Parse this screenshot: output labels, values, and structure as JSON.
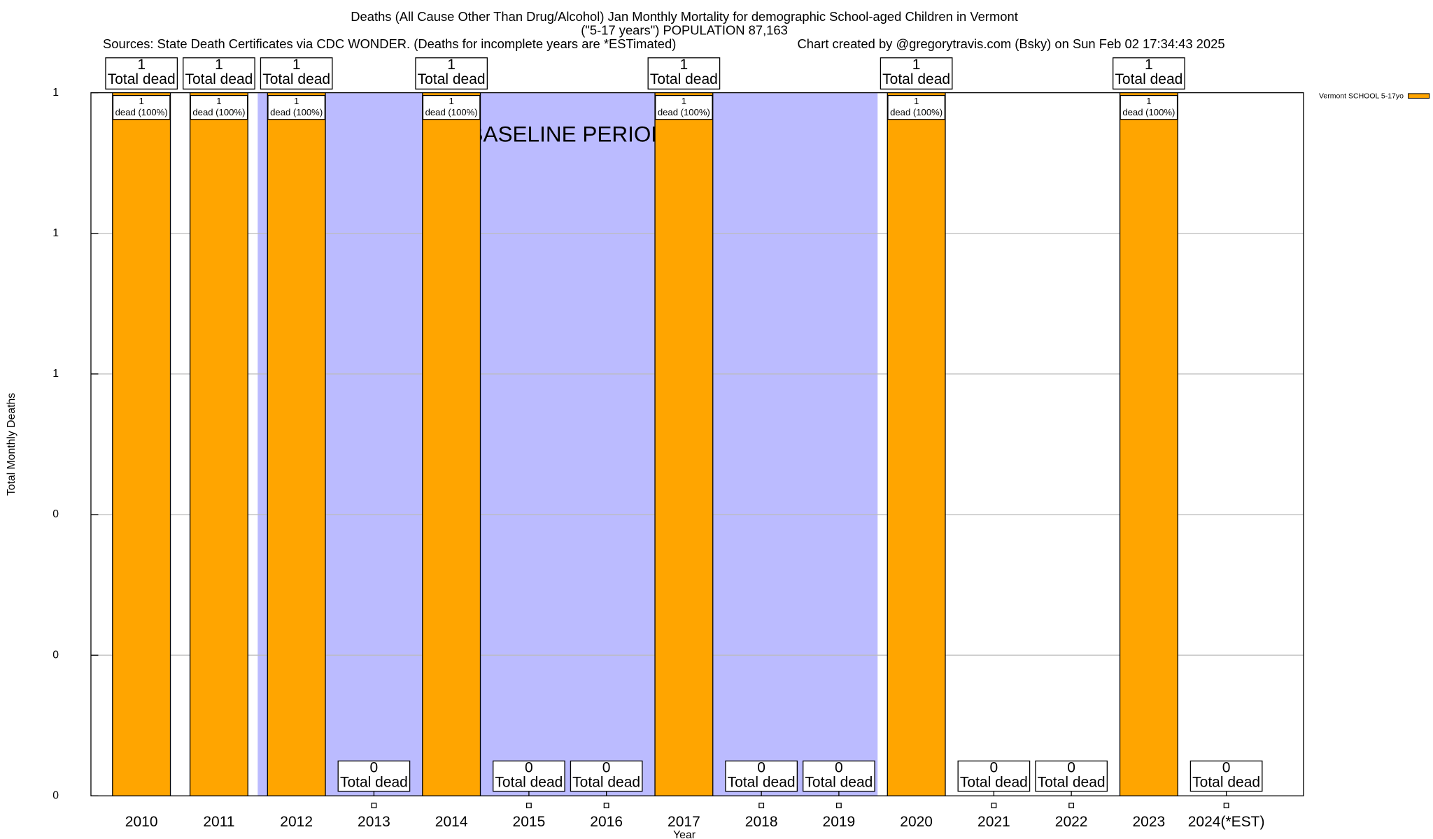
{
  "chart_data": {
    "type": "bar",
    "title": "Deaths (All Cause Other Than Drug/Alcohol) Jan Monthly Mortality for demographic School-aged Children in Vermont",
    "subtitle": "(\"5-17 years\") POPULATION 87,163",
    "source": "Sources: State Death Certificates via CDC WONDER. (Deaths for incomplete years are *ESTimated)",
    "credit": "Chart created by @gregorytravis.com (Bsky) on Sun Feb 02 17:34:43 2025",
    "x_label": "Year",
    "y_label": "Total Monthly Deaths",
    "categories": [
      "2010",
      "2011",
      "2012",
      "2013",
      "2014",
      "2015",
      "2016",
      "2017",
      "2018",
      "2019",
      "2020",
      "2021",
      "2022",
      "2023",
      "2024(*EST)"
    ],
    "series": [
      {
        "name": "Vermont SCHOOL 5-17yo",
        "color": "#ffa500",
        "values": [
          1,
          1,
          1,
          0,
          1,
          0,
          0,
          1,
          0,
          0,
          1,
          0,
          0,
          1,
          0
        ]
      }
    ],
    "total_label": "Total dead",
    "inner_label": "dead (100%)",
    "baseline": {
      "label": "BASELINE PERIOD",
      "start": "2012",
      "end": "2019",
      "color": "#bbbbff"
    },
    "ylim": [
      0,
      1
    ],
    "yticks": [
      {
        "value": 0,
        "label": "0"
      },
      {
        "value": 0.2,
        "label": "0"
      },
      {
        "value": 0.4,
        "label": "0"
      },
      {
        "value": 0.6,
        "label": "1"
      },
      {
        "value": 0.8,
        "label": "1"
      },
      {
        "value": 1,
        "label": "1"
      }
    ],
    "grid": true,
    "legend": "top-right"
  }
}
